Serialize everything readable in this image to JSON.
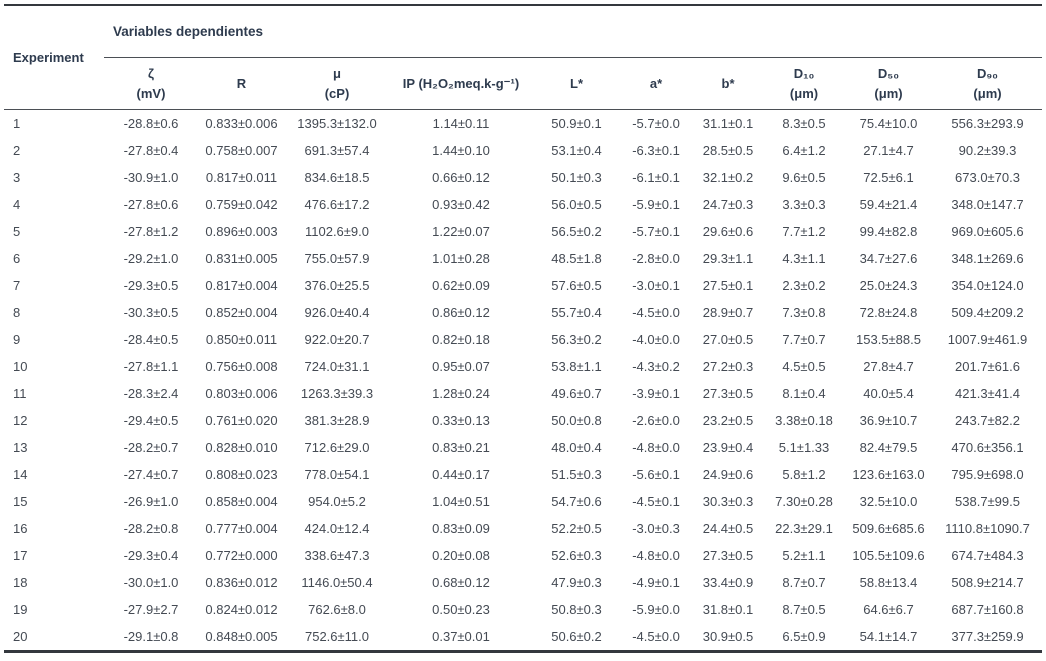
{
  "table": {
    "experiment_header": "Experiment",
    "group_header": "Variables dependientes",
    "colors": {
      "header_text": "#2e3b4e",
      "body_text": "#444a53",
      "rule_dark": "#34383e",
      "rule_light": "#4b4f55"
    },
    "columns": [
      {
        "line1": "ζ",
        "line2": "(mV)"
      },
      {
        "line1": "R",
        "line2": ""
      },
      {
        "line1": "μ",
        "line2": "(cP)"
      },
      {
        "line1": "IP (H₂O₂meq.k-g⁻¹)",
        "line2": ""
      },
      {
        "line1": "L*",
        "line2": ""
      },
      {
        "line1": "a*",
        "line2": ""
      },
      {
        "line1": "b*",
        "line2": ""
      },
      {
        "line1": "D₁₀",
        "line2": "(μm)"
      },
      {
        "line1": "D₅₀",
        "line2": "(μm)"
      },
      {
        "line1": "D₉₀",
        "line2": "(μm)"
      }
    ],
    "rows": [
      {
        "experiment": "1",
        "values": [
          "-28.8±0.6",
          "0.833±0.006",
          "1395.3±132.0",
          "1.14±0.11",
          "50.9±0.1",
          "-5.7±0.0",
          "31.1±0.1",
          "8.3±0.5",
          "75.4±10.0",
          "556.3±293.9"
        ]
      },
      {
        "experiment": "2",
        "values": [
          "-27.8±0.4",
          "0.758±0.007",
          "691.3±57.4",
          "1.44±0.10",
          "53.1±0.4",
          "-6.3±0.1",
          "28.5±0.5",
          "6.4±1.2",
          "27.1±4.7",
          "90.2±39.3"
        ]
      },
      {
        "experiment": "3",
        "values": [
          "-30.9±1.0",
          "0.817±0.011",
          "834.6±18.5",
          "0.66±0.12",
          "50.1±0.3",
          "-6.1±0.1",
          "32.1±0.2",
          "9.6±0.5",
          "72.5±6.1",
          "673.0±70.3"
        ]
      },
      {
        "experiment": "4",
        "values": [
          "-27.8±0.6",
          "0.759±0.042",
          "476.6±17.2",
          "0.93±0.42",
          "56.0±0.5",
          "-5.9±0.1",
          "24.7±0.3",
          "3.3±0.3",
          "59.4±21.4",
          "348.0±147.7"
        ]
      },
      {
        "experiment": "5",
        "values": [
          "-27.8±1.2",
          "0.896±0.003",
          "1102.6±9.0",
          "1.22±0.07",
          "56.5±0.2",
          "-5.7±0.1",
          "29.6±0.6",
          "7.7±1.2",
          "99.4±82.8",
          "969.0±605.6"
        ]
      },
      {
        "experiment": "6",
        "values": [
          "-29.2±1.0",
          "0.831±0.005",
          "755.0±57.9",
          "1.01±0.28",
          "48.5±1.8",
          "-2.8±0.0",
          "29.3±1.1",
          "4.3±1.1",
          "34.7±27.6",
          "348.1±269.6"
        ]
      },
      {
        "experiment": "7",
        "values": [
          "-29.3±0.5",
          "0.817±0.004",
          "376.0±25.5",
          "0.62±0.09",
          "57.6±0.5",
          "-3.0±0.1",
          "27.5±0.1",
          "2.3±0.2",
          "25.0±24.3",
          "354.0±124.0"
        ]
      },
      {
        "experiment": "8",
        "values": [
          "-30.3±0.5",
          "0.852±0.004",
          "926.0±40.4",
          "0.86±0.12",
          "55.7±0.4",
          "-4.5±0.0",
          "28.9±0.7",
          "7.3±0.8",
          "72.8±24.8",
          "509.4±209.2"
        ]
      },
      {
        "experiment": "9",
        "values": [
          "-28.4±0.5",
          "0.850±0.011",
          "922.0±20.7",
          "0.82±0.18",
          "56.3±0.2",
          "-4.0±0.0",
          "27.0±0.5",
          "7.7±0.7",
          "153.5±88.5",
          "1007.9±461.9"
        ]
      },
      {
        "experiment": "10",
        "values": [
          "-27.8±1.1",
          "0.756±0.008",
          "724.0±31.1",
          "0.95±0.07",
          "53.8±1.1",
          "-4.3±0.2",
          "27.2±0.3",
          "4.5±0.5",
          "27.8±4.7",
          "201.7±61.6"
        ]
      },
      {
        "experiment": "11",
        "values": [
          "-28.3±2.4",
          "0.803±0.006",
          "1263.3±39.3",
          "1.28±0.24",
          "49.6±0.7",
          "-3.9±0.1",
          "27.3±0.5",
          "8.1±0.4",
          "40.0±5.4",
          "421.3±41.4"
        ]
      },
      {
        "experiment": "12",
        "values": [
          "-29.4±0.5",
          "0.761±0.020",
          "381.3±28.9",
          "0.33±0.13",
          "50.0±0.8",
          "-2.6±0.0",
          "23.2±0.5",
          "3.38±0.18",
          "36.9±10.7",
          "243.7±82.2"
        ]
      },
      {
        "experiment": "13",
        "values": [
          "-28.2±0.7",
          "0.828±0.010",
          "712.6±29.0",
          "0.83±0.21",
          "48.0±0.4",
          "-4.8±0.0",
          "23.9±0.4",
          "5.1±1.33",
          "82.4±79.5",
          "470.6±356.1"
        ]
      },
      {
        "experiment": "14",
        "values": [
          "-27.4±0.7",
          "0.808±0.023",
          "778.0±54.1",
          "0.44±0.17",
          "51.5±0.3",
          "-5.6±0.1",
          "24.9±0.6",
          "5.8±1.2",
          "123.6±163.0",
          "795.9±698.0"
        ]
      },
      {
        "experiment": "15",
        "values": [
          "-26.9±1.0",
          "0.858±0.004",
          "954.0±5.2",
          "1.04±0.51",
          "54.7±0.6",
          "-4.5±0.1",
          "30.3±0.3",
          "7.30±0.28",
          "32.5±10.0",
          "538.7±99.5"
        ]
      },
      {
        "experiment": "16",
        "values": [
          "-28.2±0.8",
          "0.777±0.004",
          "424.0±12.4",
          "0.83±0.09",
          "52.2±0.5",
          "-3.0±0.3",
          "24.4±0.5",
          "22.3±29.1",
          "509.6±685.6",
          "1110.8±1090.7"
        ]
      },
      {
        "experiment": "17",
        "values": [
          "-29.3±0.4",
          "0.772±0.000",
          "338.6±47.3",
          "0.20±0.08",
          "52.6±0.3",
          "-4.8±0.0",
          "27.3±0.5",
          "5.2±1.1",
          "105.5±109.6",
          "674.7±484.3"
        ]
      },
      {
        "experiment": "18",
        "values": [
          "-30.0±1.0",
          "0.836±0.012",
          "1146.0±50.4",
          "0.68±0.12",
          "47.9±0.3",
          "-4.9±0.1",
          "33.4±0.9",
          "8.7±0.7",
          "58.8±13.4",
          "508.9±214.7"
        ]
      },
      {
        "experiment": "19",
        "values": [
          "-27.9±2.7",
          "0.824±0.012",
          "762.6±8.0",
          "0.50±0.23",
          "50.8±0.3",
          "-5.9±0.0",
          "31.8±0.1",
          "8.7±0.5",
          "64.6±6.7",
          "687.7±160.8"
        ]
      },
      {
        "experiment": "20",
        "values": [
          "-29.1±0.8",
          "0.848±0.005",
          "752.6±11.0",
          "0.37±0.01",
          "50.6±0.2",
          "-4.5±0.0",
          "30.9±0.5",
          "6.5±0.9",
          "54.1±14.7",
          "377.3±259.9"
        ]
      }
    ]
  }
}
